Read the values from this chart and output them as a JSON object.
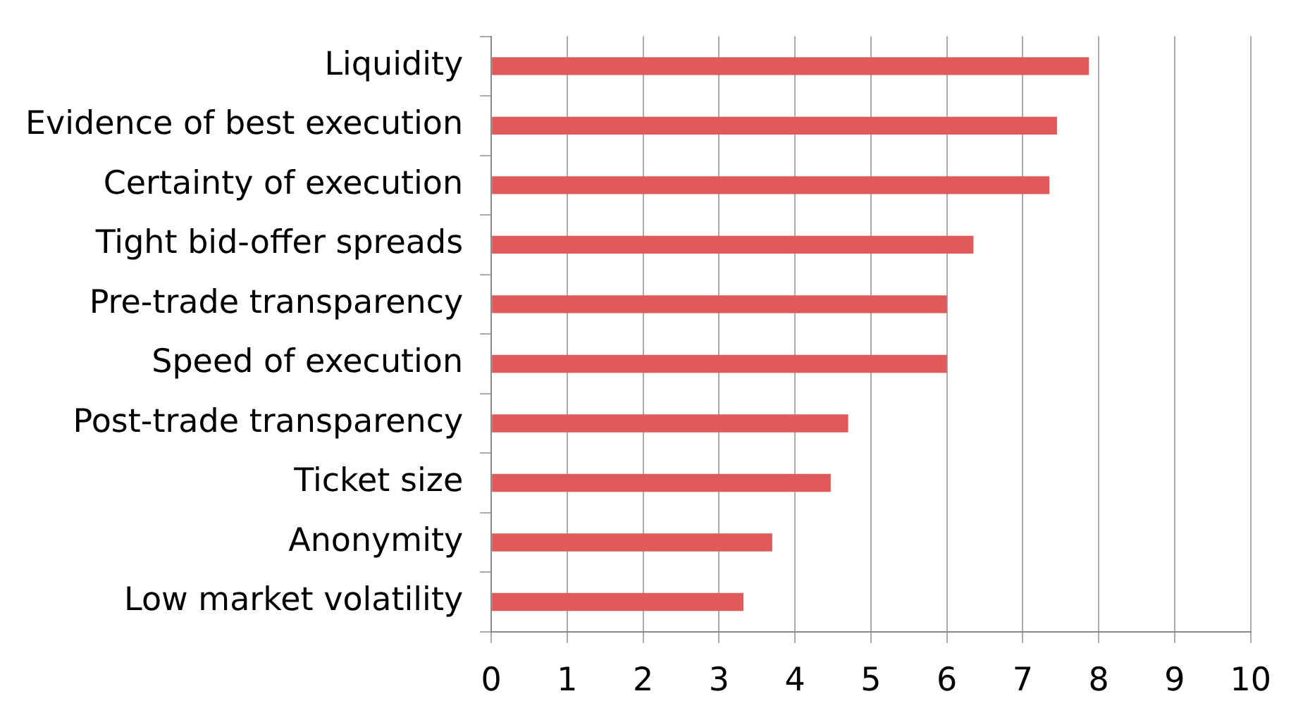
{
  "chart_data": {
    "type": "bar",
    "orientation": "horizontal",
    "categories": [
      "Liquidity",
      "Evidence of best execution",
      "Certainty of execution",
      "Tight bid-offer spreads",
      "Pre-trade transparency",
      "Speed of execution",
      "Post-trade transparency",
      "Ticket size",
      "Anonymity",
      "Low market volatility"
    ],
    "values": [
      7.87,
      7.45,
      7.35,
      6.35,
      6.0,
      6.0,
      4.7,
      4.47,
      3.7,
      3.32
    ],
    "color": "#e05a5a",
    "xlim": [
      0,
      10
    ],
    "xticks": [
      0,
      1,
      2,
      3,
      4,
      5,
      6,
      7,
      8,
      9,
      10
    ],
    "grid": "x",
    "legend": false
  }
}
